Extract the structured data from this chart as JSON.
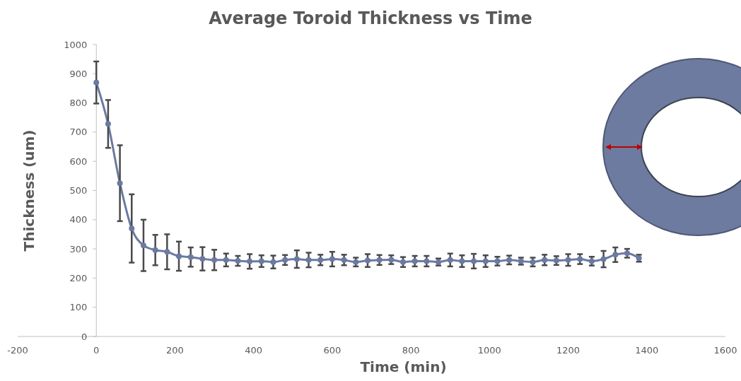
{
  "chart_data": {
    "type": "line",
    "title": "Average Toroid Thickness vs Time",
    "xlabel": "Time (min)",
    "ylabel": "Thickness (um)",
    "xlim": [
      -200,
      1600
    ],
    "xticks": [
      -200,
      0,
      200,
      400,
      600,
      800,
      1000,
      1200,
      1400,
      1600
    ],
    "ylim": [
      0,
      1000
    ],
    "yticks": [
      0,
      100,
      200,
      300,
      400,
      500,
      600,
      700,
      800,
      900,
      1000
    ],
    "grid": false,
    "marker": "circle",
    "line_style": "solid",
    "series": [
      {
        "color": "#6b7aa1",
        "x": [
          0,
          30,
          60,
          90,
          120,
          150,
          180,
          210,
          240,
          270,
          300,
          330,
          360,
          390,
          420,
          450,
          480,
          510,
          540,
          570,
          600,
          630,
          660,
          690,
          720,
          750,
          780,
          810,
          840,
          870,
          900,
          930,
          960,
          990,
          1020,
          1050,
          1080,
          1110,
          1140,
          1170,
          1200,
          1230,
          1260,
          1290,
          1320,
          1350,
          1380
        ],
        "values": [
          870,
          728,
          525,
          370,
          312,
          296,
          290,
          275,
          272,
          266,
          262,
          262,
          259,
          257,
          258,
          255,
          262,
          265,
          262,
          262,
          265,
          262,
          255,
          260,
          262,
          263,
          255,
          258,
          258,
          255,
          262,
          258,
          258,
          258,
          258,
          262,
          258,
          255,
          262,
          260,
          262,
          265,
          258,
          265,
          280,
          285,
          268
        ],
        "errors": [
          72,
          82,
          130,
          117,
          88,
          52,
          60,
          50,
          33,
          40,
          35,
          22,
          17,
          25,
          20,
          22,
          17,
          30,
          25,
          18,
          25,
          18,
          15,
          22,
          17,
          15,
          17,
          18,
          18,
          12,
          22,
          20,
          25,
          20,
          15,
          15,
          12,
          15,
          18,
          15,
          20,
          17,
          15,
          28,
          25,
          15,
          12
        ]
      }
    ]
  }
}
